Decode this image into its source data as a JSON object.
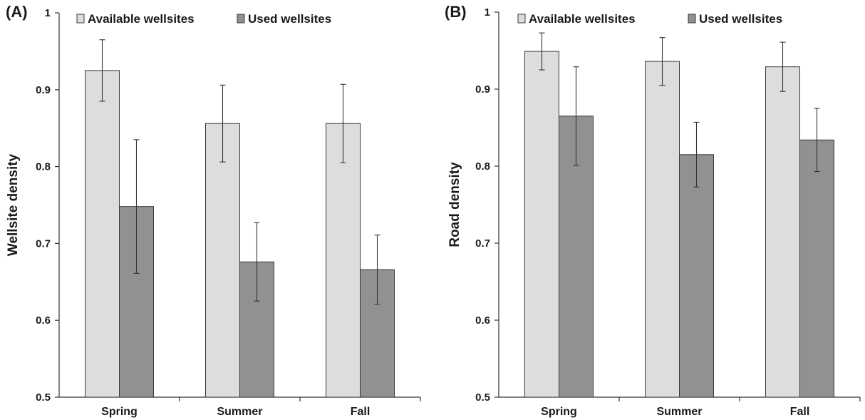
{
  "chart_data": [
    {
      "type": "bar",
      "panel_label": "(A)",
      "categories": [
        "Spring",
        "Summer",
        "Fall"
      ],
      "ylabel": "Wellsite density",
      "xlabel": "",
      "ylim": [
        0.5,
        1.0
      ],
      "yticks": [
        "0.5",
        "0.6",
        "0.7",
        "0.8",
        "0.9",
        "1"
      ],
      "legend_position": "top",
      "grid": false,
      "series": [
        {
          "name": "Available wellsites",
          "color": "#dcdddf",
          "values": [
            0.925,
            0.856,
            0.856
          ],
          "error": [
            0.04,
            0.05,
            0.051
          ]
        },
        {
          "name": "Used wellsites",
          "color": "#8f9193",
          "values": [
            0.748,
            0.676,
            0.666
          ],
          "error": [
            0.087,
            0.051,
            0.045
          ]
        }
      ]
    },
    {
      "type": "bar",
      "panel_label": "(B)",
      "categories": [
        "Spring",
        "Summer",
        "Fall"
      ],
      "ylabel": "Road density",
      "xlabel": "",
      "ylim": [
        0.5,
        1.0
      ],
      "yticks": [
        "0.5",
        "0.6",
        "0.7",
        "0.8",
        "0.9",
        "1"
      ],
      "legend_position": "top",
      "grid": false,
      "series": [
        {
          "name": "Available wellsites",
          "color": "#dcdddf",
          "values": [
            0.949,
            0.936,
            0.929
          ],
          "error": [
            0.024,
            0.031,
            0.032
          ]
        },
        {
          "name": "Used wellsites",
          "color": "#8f9193",
          "values": [
            0.865,
            0.815,
            0.834
          ],
          "error": [
            0.064,
            0.042,
            0.041
          ]
        }
      ]
    }
  ]
}
